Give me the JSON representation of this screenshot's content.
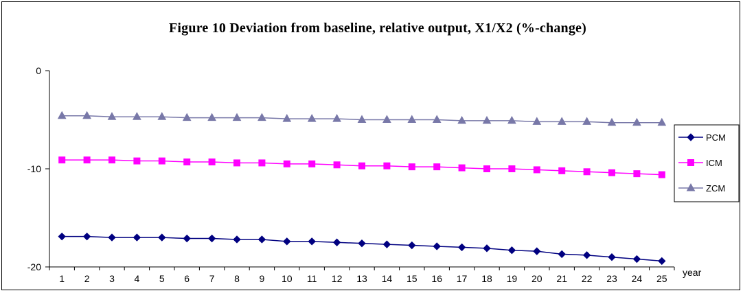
{
  "chart_data": {
    "type": "line",
    "title": "Figure 10  Deviation from baseline, relative output, X1/X2 (%-change)",
    "xlabel": "year",
    "ylabel": "",
    "x": [
      1,
      2,
      3,
      4,
      5,
      6,
      7,
      8,
      9,
      10,
      11,
      12,
      13,
      14,
      15,
      16,
      17,
      18,
      19,
      20,
      21,
      22,
      23,
      24,
      25
    ],
    "ylim": [
      -20,
      0
    ],
    "yticks": [
      0,
      -10,
      -20
    ],
    "grid": false,
    "legend_position": "right",
    "series": [
      {
        "name": "PCM",
        "color": "#000080",
        "marker": "diamond",
        "values": [
          -16.9,
          -16.9,
          -17.0,
          -17.0,
          -17.0,
          -17.1,
          -17.1,
          -17.2,
          -17.2,
          -17.4,
          -17.4,
          -17.5,
          -17.6,
          -17.7,
          -17.8,
          -17.9,
          -18.0,
          -18.1,
          -18.3,
          -18.4,
          -18.7,
          -18.8,
          -19.0,
          -19.2,
          -19.4
        ]
      },
      {
        "name": "ICM",
        "color": "#ff00ff",
        "marker": "square",
        "values": [
          -9.1,
          -9.1,
          -9.1,
          -9.2,
          -9.2,
          -9.3,
          -9.3,
          -9.4,
          -9.4,
          -9.5,
          -9.5,
          -9.6,
          -9.7,
          -9.7,
          -9.8,
          -9.8,
          -9.9,
          -10.0,
          -10.0,
          -10.1,
          -10.2,
          -10.3,
          -10.4,
          -10.5,
          -10.6
        ]
      },
      {
        "name": "ZCM",
        "color": "#7878a8",
        "marker": "triangle",
        "values": [
          -4.6,
          -4.6,
          -4.7,
          -4.7,
          -4.7,
          -4.8,
          -4.8,
          -4.8,
          -4.8,
          -4.9,
          -4.9,
          -4.9,
          -5.0,
          -5.0,
          -5.0,
          -5.0,
          -5.1,
          -5.1,
          -5.1,
          -5.2,
          -5.2,
          -5.2,
          -5.3,
          -5.3,
          -5.3
        ]
      }
    ]
  }
}
